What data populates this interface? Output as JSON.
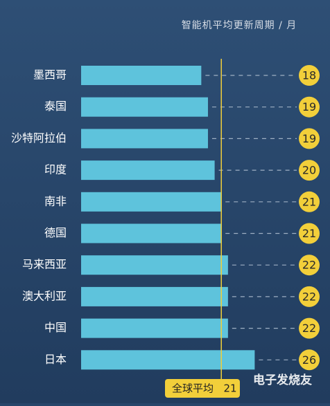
{
  "chart_data": {
    "type": "bar",
    "orientation": "horizontal",
    "title": "智能机平均更新周期 / 月",
    "categories": [
      "墨西哥",
      "泰国",
      "沙特阿拉伯",
      "印度",
      "南非",
      "德国",
      "马来西亚",
      "澳大利亚",
      "中国",
      "日本"
    ],
    "values": [
      18,
      19,
      19,
      20,
      21,
      21,
      22,
      22,
      22,
      26
    ],
    "color": "#5ec3dc",
    "average": {
      "label": "全球平均",
      "value": 21,
      "color": "#f2cf3a"
    },
    "watermark": "电子发烧友"
  }
}
